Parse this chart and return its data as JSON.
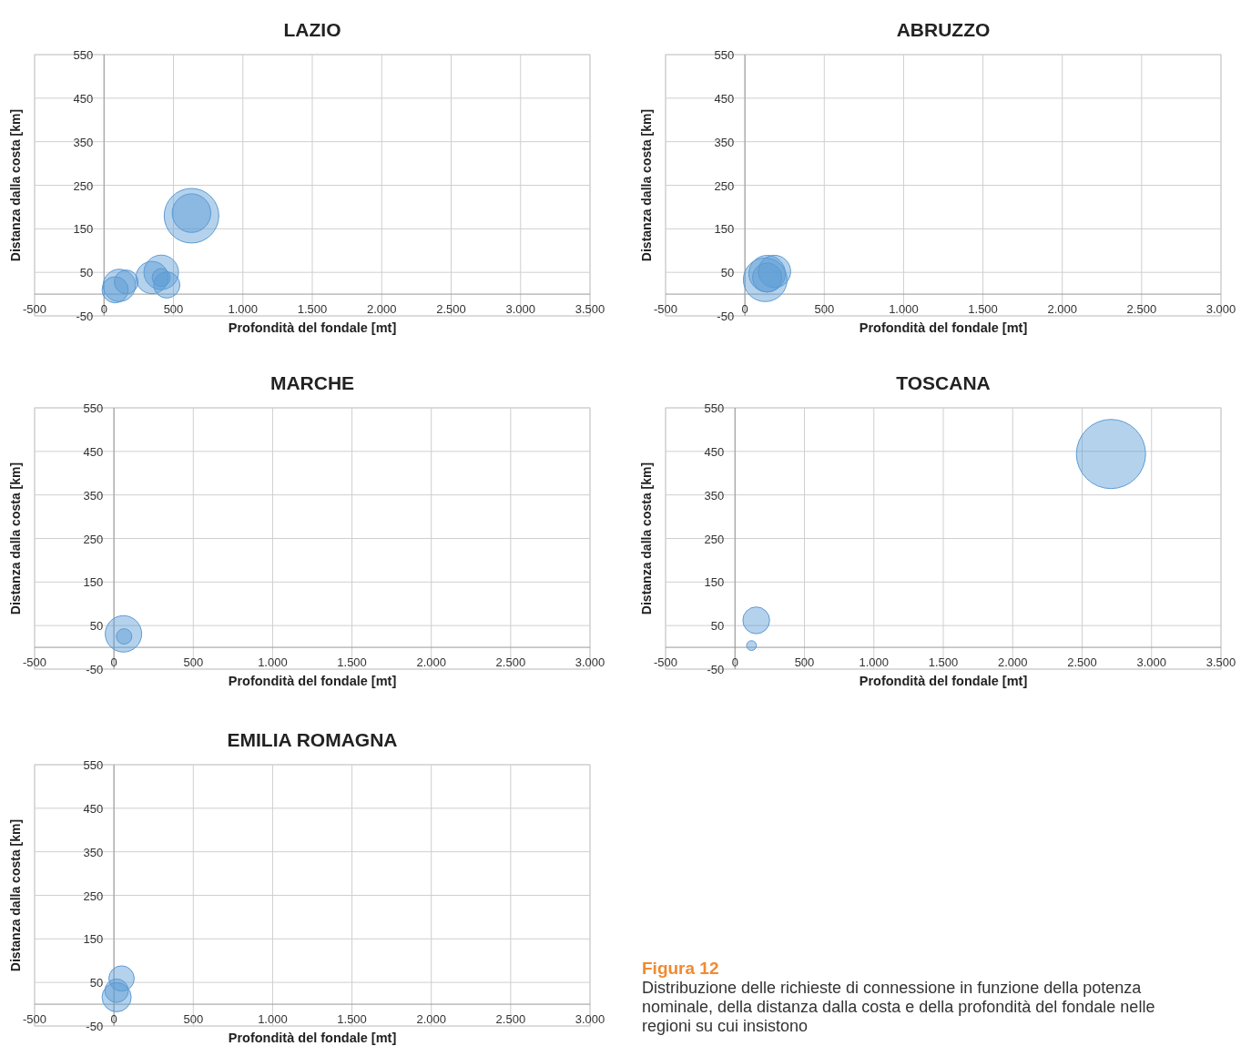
{
  "chart_data": [
    {
      "type": "bubble",
      "title": "LAZIO",
      "xlabel": "Profondità del fondale [mt]",
      "ylabel": "Distanza dalla costa [km]",
      "x": [
        630,
        630,
        80,
        110,
        160,
        346,
        412,
        452,
        412
      ],
      "values": [
        180,
        186,
        10,
        20,
        28,
        38,
        50,
        21,
        38
      ],
      "sizes": [
        1,
        0.5,
        0.23,
        0.35,
        0.19,
        0.35,
        0.4,
        0.23,
        0.11
      ],
      "color": "#5b9bd5",
      "xlim": [
        -500,
        3500
      ],
      "xticks": [
        -500,
        0,
        500,
        {
          "value": 1000,
          "label": "1.000"
        },
        {
          "value": 1500,
          "label": "1.500"
        },
        {
          "value": 2000,
          "label": "2.000"
        },
        {
          "value": 2500,
          "label": "2.500"
        },
        {
          "value": 3000,
          "label": "3.000"
        },
        {
          "value": 3500,
          "label": "3.500"
        }
      ],
      "ylim": [
        -50,
        550
      ],
      "yticks": [
        -50,
        50,
        150,
        250,
        350,
        450,
        550
      ],
      "grid": true
    },
    {
      "type": "bubble",
      "title": "ABRUZZO",
      "xlabel": "Profondità del fondale [mt]",
      "ylabel": "Distanza dalla costa [km]",
      "x": [
        128,
        140,
        186,
        140
      ],
      "values": [
        33,
        47,
        52,
        38
      ],
      "sizes": [
        1,
        0.7,
        0.55,
        0.45
      ],
      "color": "#5b9bd5",
      "xlim": [
        -500,
        3000
      ],
      "xticks": [
        -500,
        0,
        500,
        {
          "value": 1000,
          "label": "1.000"
        },
        {
          "value": 1500,
          "label": "1.500"
        },
        {
          "value": 2000,
          "label": "2.000"
        },
        {
          "value": 2500,
          "label": "2.500"
        },
        {
          "value": 3000,
          "label": "3.000"
        }
      ],
      "ylim": [
        -50,
        550
      ],
      "yticks": [
        -50,
        50,
        150,
        250,
        350,
        450,
        550
      ],
      "grid": true
    },
    {
      "type": "bubble",
      "title": "MARCHE",
      "xlabel": "Profondità del fondale [mt]",
      "ylabel": "Distanza dalla costa [km]",
      "x": [
        60,
        64
      ],
      "values": [
        31,
        25
      ],
      "sizes": [
        1,
        0.18
      ],
      "color": "#5b9bd5",
      "xlim": [
        -500,
        3000
      ],
      "xticks": [
        -500,
        0,
        500,
        {
          "value": 1000,
          "label": "1.000"
        },
        {
          "value": 1500,
          "label": "1.500"
        },
        {
          "value": 2000,
          "label": "2.000"
        },
        {
          "value": 2500,
          "label": "2.500"
        },
        {
          "value": 3000,
          "label": "3.000"
        }
      ],
      "ylim": [
        -50,
        550
      ],
      "yticks": [
        -50,
        50,
        150,
        250,
        350,
        450,
        550
      ],
      "grid": true
    },
    {
      "type": "bubble",
      "title": "TOSCANA",
      "xlabel": "Profondità del fondale [mt]",
      "ylabel": "Distanza dalla costa [km]",
      "x": [
        2708,
        153,
        119
      ],
      "values": [
        444,
        62,
        4
      ],
      "sizes": [
        1,
        0.15,
        0.02
      ],
      "color": "#5b9bd5",
      "xlim": [
        -500,
        3500
      ],
      "xticks": [
        -500,
        0,
        500,
        {
          "value": 1000,
          "label": "1.000"
        },
        {
          "value": 1500,
          "label": "1.500"
        },
        {
          "value": 2000,
          "label": "2.000"
        },
        {
          "value": 2500,
          "label": "2.500"
        },
        {
          "value": 3000,
          "label": "3.000"
        },
        {
          "value": 3500,
          "label": "3.500"
        }
      ],
      "ylim": [
        -50,
        550
      ],
      "yticks": [
        -50,
        50,
        150,
        250,
        350,
        450,
        550
      ],
      "grid": true
    },
    {
      "type": "bubble",
      "title": "EMILIA ROMAGNA",
      "xlabel": "Profondità del fondale [mt]",
      "ylabel": "Distanza dalla costa [km]",
      "x": [
        48,
        17,
        17
      ],
      "values": [
        59,
        31,
        16
      ],
      "sizes": [
        0.76,
        0.65,
        1
      ],
      "color": "#5b9bd5",
      "xlim": [
        -500,
        3000
      ],
      "xticks": [
        -500,
        0,
        500,
        {
          "value": 1000,
          "label": "1.000"
        },
        {
          "value": 1500,
          "label": "1.500"
        },
        {
          "value": 2000,
          "label": "2.000"
        },
        {
          "value": 2500,
          "label": "2.500"
        },
        {
          "value": 3000,
          "label": "3.000"
        }
      ],
      "ylim": [
        -50,
        550
      ],
      "yticks": [
        -50,
        50,
        150,
        250,
        350,
        450,
        550
      ],
      "grid": true,
      "annotations": [
        "Figura 12",
        "Distribuzione delle richieste di connessione in funzione della potenza nominale, della distanza dalla costa e della profondità del fondale nelle regioni su cui insistono"
      ]
    }
  ]
}
